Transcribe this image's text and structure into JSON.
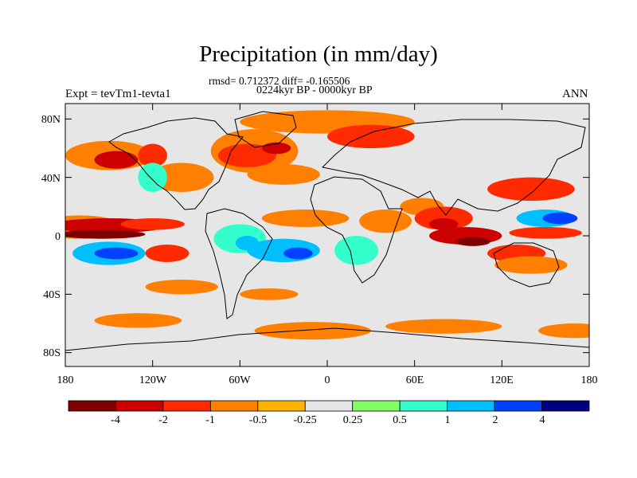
{
  "title": "Precipitation (in mm/day)",
  "stats_line": "rmsd= 0.712372 diff= -0.165506",
  "subtitle": "0224kyr BP - 0000kyr BP",
  "experiment": "Expt = tevTm1-tevta1",
  "season": "ANN",
  "y_ticks": [
    "80N",
    "40N",
    "0",
    "40S",
    "80S"
  ],
  "x_ticks": [
    "180",
    "120W",
    "60W",
    "0",
    "60E",
    "120E",
    "180"
  ],
  "colorbar": {
    "colors": [
      "#7f0000",
      "#cc0000",
      "#ff2a00",
      "#ff7f00",
      "#ffb300",
      "#e6e6e6",
      "#80ff66",
      "#33ffcc",
      "#00bfff",
      "#0040ff",
      "#000080"
    ],
    "labels": [
      "-4",
      "-2",
      "-1",
      "-0.5",
      "-0.25",
      "0.25",
      "0.5",
      "1",
      "2",
      "4"
    ]
  },
  "anomaly_regions": [
    {
      "lon": -170,
      "lat": 6,
      "rx": 30,
      "ry": 8,
      "level": "-0.5"
    },
    {
      "lon": -150,
      "lat": 7,
      "rx": 40,
      "ry": 5,
      "level": "-2"
    },
    {
      "lon": -155,
      "lat": 1,
      "rx": 30,
      "ry": 3,
      "level": "-4"
    },
    {
      "lon": -120,
      "lat": 8,
      "rx": 22,
      "ry": 4,
      "level": "-1"
    },
    {
      "lon": -150,
      "lat": -12,
      "rx": 25,
      "ry": 8,
      "level": "1"
    },
    {
      "lon": -145,
      "lat": -12,
      "rx": 15,
      "ry": 4,
      "level": "2"
    },
    {
      "lon": -110,
      "lat": -12,
      "rx": 15,
      "ry": 6,
      "level": "-1"
    },
    {
      "lon": -150,
      "lat": 55,
      "rx": 30,
      "ry": 10,
      "level": "-0.5"
    },
    {
      "lon": -145,
      "lat": 52,
      "rx": 15,
      "ry": 6,
      "level": "-2"
    },
    {
      "lon": -120,
      "lat": 55,
      "rx": 10,
      "ry": 8,
      "level": "-1"
    },
    {
      "lon": -100,
      "lat": 40,
      "rx": 22,
      "ry": 10,
      "level": "-0.5"
    },
    {
      "lon": -120,
      "lat": 40,
      "rx": 10,
      "ry": 10,
      "level": "0.5"
    },
    {
      "lon": -50,
      "lat": 58,
      "rx": 30,
      "ry": 15,
      "level": "-0.5"
    },
    {
      "lon": -55,
      "lat": 55,
      "rx": 20,
      "ry": 8,
      "level": "-1"
    },
    {
      "lon": -35,
      "lat": 60,
      "rx": 10,
      "ry": 4,
      "level": "-2"
    },
    {
      "lon": -30,
      "lat": 42,
      "rx": 25,
      "ry": 7,
      "level": "-0.5"
    },
    {
      "lon": 0,
      "lat": 78,
      "rx": 60,
      "ry": 8,
      "level": "-0.5"
    },
    {
      "lon": 30,
      "lat": 68,
      "rx": 30,
      "ry": 8,
      "level": "-1"
    },
    {
      "lon": -60,
      "lat": -2,
      "rx": 18,
      "ry": 10,
      "level": "0.5"
    },
    {
      "lon": -55,
      "lat": -5,
      "rx": 8,
      "ry": 5,
      "level": "1"
    },
    {
      "lon": -30,
      "lat": -10,
      "rx": 25,
      "ry": 8,
      "level": "1"
    },
    {
      "lon": -20,
      "lat": -12,
      "rx": 10,
      "ry": 4,
      "level": "2"
    },
    {
      "lon": -15,
      "lat": 12,
      "rx": 30,
      "ry": 6,
      "level": "-0.5"
    },
    {
      "lon": 20,
      "lat": -10,
      "rx": 15,
      "ry": 10,
      "level": "0.5"
    },
    {
      "lon": 40,
      "lat": 10,
      "rx": 18,
      "ry": 8,
      "level": "-0.5"
    },
    {
      "lon": 65,
      "lat": 20,
      "rx": 15,
      "ry": 6,
      "level": "-0.5"
    },
    {
      "lon": 80,
      "lat": 12,
      "rx": 20,
      "ry": 8,
      "level": "-1"
    },
    {
      "lon": 80,
      "lat": 8,
      "rx": 10,
      "ry": 4,
      "level": "-2"
    },
    {
      "lon": 95,
      "lat": 0,
      "rx": 25,
      "ry": 6,
      "level": "-2"
    },
    {
      "lon": 100,
      "lat": -4,
      "rx": 12,
      "ry": 3,
      "level": "-4"
    },
    {
      "lon": 140,
      "lat": 32,
      "rx": 30,
      "ry": 8,
      "level": "-1"
    },
    {
      "lon": 150,
      "lat": 12,
      "rx": 20,
      "ry": 6,
      "level": "1"
    },
    {
      "lon": 160,
      "lat": 12,
      "rx": 12,
      "ry": 4,
      "level": "2"
    },
    {
      "lon": 150,
      "lat": 2,
      "rx": 25,
      "ry": 4,
      "level": "-1"
    },
    {
      "lon": 130,
      "lat": -12,
      "rx": 20,
      "ry": 6,
      "level": "-1"
    },
    {
      "lon": 140,
      "lat": -20,
      "rx": 25,
      "ry": 6,
      "level": "-0.5"
    },
    {
      "lon": -100,
      "lat": -35,
      "rx": 25,
      "ry": 5,
      "level": "-0.5"
    },
    {
      "lon": -40,
      "lat": -40,
      "rx": 20,
      "ry": 4,
      "level": "-0.5"
    },
    {
      "lon": -10,
      "lat": -65,
      "rx": 40,
      "ry": 6,
      "level": "-0.5"
    },
    {
      "lon": 80,
      "lat": -62,
      "rx": 40,
      "ry": 5,
      "level": "-0.5"
    },
    {
      "lon": 170,
      "lat": -65,
      "rx": 25,
      "ry": 5,
      "level": "-0.5"
    },
    {
      "lon": -130,
      "lat": -58,
      "rx": 30,
      "ry": 5,
      "level": "-0.5"
    }
  ]
}
